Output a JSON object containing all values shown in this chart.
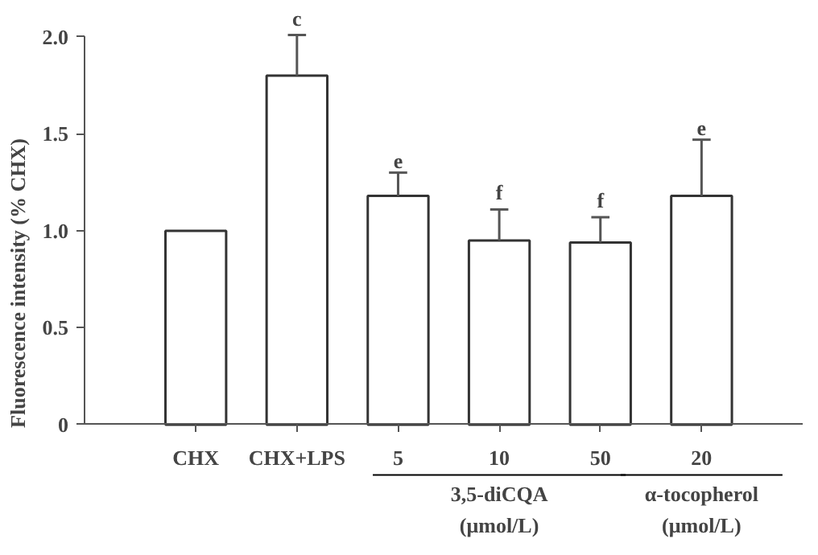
{
  "chart_data": {
    "type": "bar",
    "ylabel": "Fluorescence intensity (% CHX)",
    "categories": [
      "CHX",
      "CHX+LPS",
      "5",
      "10",
      "50",
      "20"
    ],
    "values": [
      1.0,
      1.8,
      1.18,
      0.95,
      0.94,
      1.18
    ],
    "errors": [
      null,
      [
        1.8,
        2.01
      ],
      [
        1.18,
        1.3
      ],
      [
        0.95,
        1.11
      ],
      [
        0.94,
        1.07
      ],
      [
        1.18,
        1.47
      ]
    ],
    "color": "#ffffff",
    "ylim": [
      0,
      2.0
    ],
    "yticks": [
      0,
      {
        "value": 0.5,
        "label": "0.5"
      },
      {
        "value": 1,
        "label": "1.0"
      },
      {
        "value": 1.5,
        "label": "1.5"
      },
      {
        "value": 2,
        "label": "2.0"
      }
    ],
    "grid": false,
    "annotations": [
      {
        "text": "c",
        "x": "CHX+LPS",
        "y": 2.01
      },
      {
        "text": "e",
        "x": "5",
        "y": 1.3
      },
      {
        "text": "f",
        "x": "10",
        "y": 1.11
      },
      {
        "text": "f",
        "x": "50",
        "y": 1.07
      },
      {
        "text": "e",
        "x": "20",
        "y": 1.47
      },
      "3,5-diCQA\n(μmol/L)",
      "α-tocopherol\n(μmol/L)"
    ]
  }
}
